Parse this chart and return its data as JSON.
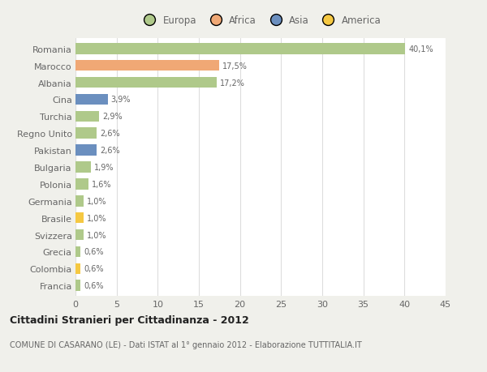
{
  "countries": [
    "Romania",
    "Marocco",
    "Albania",
    "Cina",
    "Turchia",
    "Regno Unito",
    "Pakistan",
    "Bulgaria",
    "Polonia",
    "Germania",
    "Brasile",
    "Svizzera",
    "Grecia",
    "Colombia",
    "Francia"
  ],
  "values": [
    40.1,
    17.5,
    17.2,
    3.9,
    2.9,
    2.6,
    2.6,
    1.9,
    1.6,
    1.0,
    1.0,
    1.0,
    0.6,
    0.6,
    0.6
  ],
  "labels": [
    "40,1%",
    "17,5%",
    "17,2%",
    "3,9%",
    "2,9%",
    "2,6%",
    "2,6%",
    "1,9%",
    "1,6%",
    "1,0%",
    "1,0%",
    "1,0%",
    "0,6%",
    "0,6%",
    "0,6%"
  ],
  "colors": [
    "#afc98a",
    "#f0a875",
    "#afc98a",
    "#6b8fbf",
    "#afc98a",
    "#afc98a",
    "#6b8fbf",
    "#afc98a",
    "#afc98a",
    "#afc98a",
    "#f5c842",
    "#afc98a",
    "#afc98a",
    "#f5c842",
    "#afc98a"
  ],
  "legend_labels": [
    "Europa",
    "Africa",
    "Asia",
    "America"
  ],
  "legend_colors": [
    "#afc98a",
    "#f0a875",
    "#6b8fbf",
    "#f5c842"
  ],
  "title": "Cittadini Stranieri per Cittadinanza - 2012",
  "subtitle": "COMUNE DI CASARANO (LE) - Dati ISTAT al 1° gennaio 2012 - Elaborazione TUTTITALIA.IT",
  "xlim": [
    0,
    45
  ],
  "xticks": [
    0,
    5,
    10,
    15,
    20,
    25,
    30,
    35,
    40,
    45
  ],
  "bg_color": "#f0f0eb",
  "plot_bg_color": "#ffffff",
  "grid_color": "#dddddd",
  "text_color": "#666666",
  "title_color": "#222222"
}
